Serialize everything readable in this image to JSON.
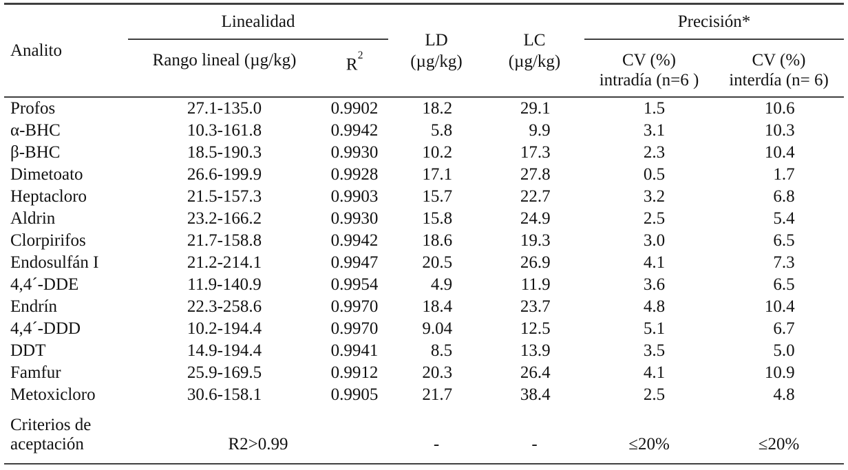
{
  "table": {
    "header": {
      "analito": "Analito",
      "linealidad_group": "Linealidad",
      "precision_group": "Precisión*",
      "rango": "Rango lineal (µg/kg)",
      "r2_base": "R",
      "r2_sup": "2",
      "ld_line1": "LD",
      "ld_line2": "(µg/kg)",
      "lc_line1": "LC",
      "lc_line2": "(µg/kg)",
      "cv_intra_line1": "CV (%)",
      "cv_intra_line2": "intradía (n=6 )",
      "cv_inter_line1": "CV (%)",
      "cv_inter_line2": "interdía (n= 6)"
    },
    "rows": [
      {
        "analito": "Profos",
        "rango": "27.1-135.0",
        "r2": "0.9902",
        "ld": "18.2",
        "lc": "29.1",
        "cv_intra": "1.5",
        "cv_inter": "10.6"
      },
      {
        "analito": "α-BHC",
        "rango": "10.3-161.8",
        "r2": "0.9942",
        "ld": "5.8",
        "lc": "9.9",
        "cv_intra": "3.1",
        "cv_inter": "10.3"
      },
      {
        "analito": "β-BHC",
        "rango": "18.5-190.3",
        "r2": "0.9930",
        "ld": "10.2",
        "lc": "17.3",
        "cv_intra": "2.3",
        "cv_inter": "10.4"
      },
      {
        "analito": "Dimetoato",
        "rango": "26.6-199.9",
        "r2": "0.9928",
        "ld": "17.1",
        "lc": "27.8",
        "cv_intra": "0.5",
        "cv_inter": "1.7"
      },
      {
        "analito": "Heptacloro",
        "rango": "21.5-157.3",
        "r2": "0.9903",
        "ld": "15.7",
        "lc": "22.7",
        "cv_intra": "3.2",
        "cv_inter": "6.8"
      },
      {
        "analito": "Aldrin",
        "rango": "23.2-166.2",
        "r2": "0.9930",
        "ld": "15.8",
        "lc": "24.9",
        "cv_intra": "2.5",
        "cv_inter": "5.4"
      },
      {
        "analito": "Clorpirifos",
        "rango": "21.7-158.8",
        "r2": "0.9942",
        "ld": "18.6",
        "lc": "19.3",
        "cv_intra": "3.0",
        "cv_inter": "6.5"
      },
      {
        "analito": "Endosulfán I",
        "rango": "21.2-214.1",
        "r2": "0.9947",
        "ld": "20.5",
        "lc": "26.9",
        "cv_intra": "4.1",
        "cv_inter": "7.3"
      },
      {
        "analito": "4,4´-DDE",
        "rango": "11.9-140.9",
        "r2": "0.9954",
        "ld": "4.9",
        "lc": "11.9",
        "cv_intra": "3.6",
        "cv_inter": "6.5"
      },
      {
        "analito": "Endrín",
        "rango": "22.3-258.6",
        "r2": "0.9970",
        "ld": "18.4",
        "lc": "23.7",
        "cv_intra": "4.8",
        "cv_inter": "10.4"
      },
      {
        "analito": "4,4´-DDD",
        "rango": "10.2-194.4",
        "r2": "0.9970",
        "ld": "9.04",
        "lc": "12.5",
        "cv_intra": "5.1",
        "cv_inter": "6.7"
      },
      {
        "analito": "DDT",
        "rango": "14.9-194.4",
        "r2": "0.9941",
        "ld": "8.5",
        "lc": "13.9",
        "cv_intra": "3.5",
        "cv_inter": "5.0"
      },
      {
        "analito": "Famfur",
        "rango": "25.9-169.5",
        "r2": "0.9912",
        "ld": "20.3",
        "lc": "26.4",
        "cv_intra": "4.1",
        "cv_inter": "10.9"
      },
      {
        "analito": "Metoxicloro",
        "rango": "30.6-158.1",
        "r2": "0.9905",
        "ld": "21.7",
        "lc": "38.4",
        "cv_intra": "2.5",
        "cv_inter": "4.8"
      }
    ],
    "criteria": {
      "label_line1": "Criterios de",
      "label_line2": "aceptación",
      "linealidad": "R2>0.99",
      "ld": "-",
      "lc": "-",
      "cv_intra": "≤20%",
      "cv_inter": "≤20%"
    }
  },
  "colors": {
    "rule": "#3f3f3f",
    "text": "#121212",
    "background": "#ffffff"
  }
}
